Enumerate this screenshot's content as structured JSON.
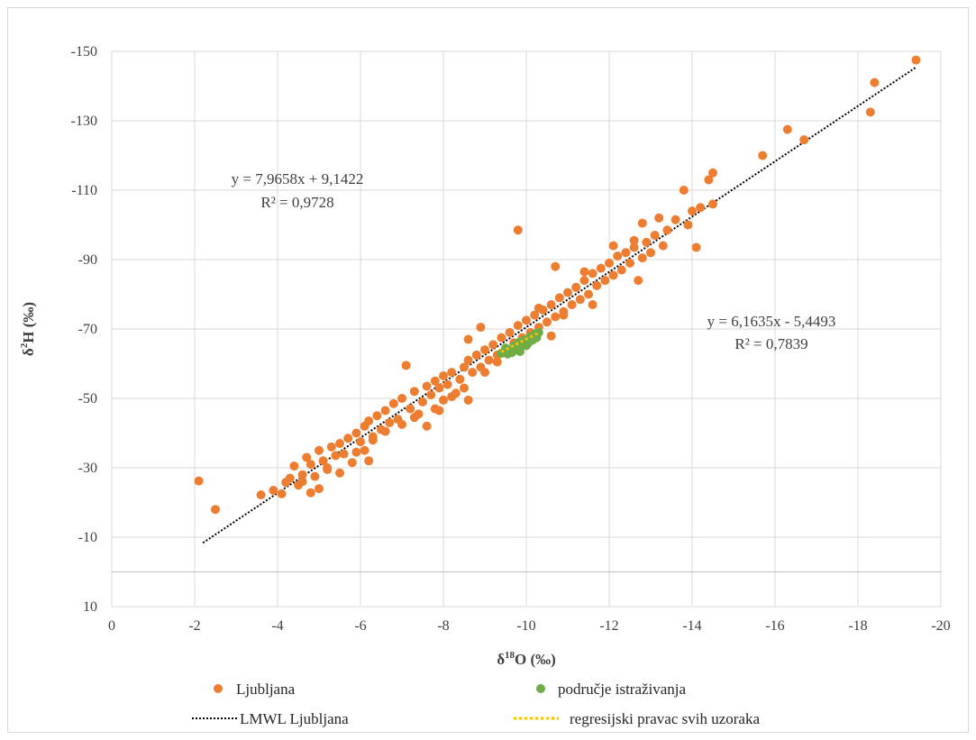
{
  "chart_data": {
    "type": "scatter",
    "xlabel_main": "δ",
    "xlabel_sup": "18",
    "xlabel_rest": "O (‰)",
    "ylabel_main": "δ",
    "ylabel_sup": "2",
    "ylabel_rest": "H (‰)",
    "x_ticks": [
      "0",
      "-2",
      "-4",
      "-6",
      "-8",
      "-10",
      "-12",
      "-14",
      "-16",
      "-18",
      "-20"
    ],
    "y_ticks": [
      "-150",
      "-130",
      "-110",
      "-90",
      "-70",
      "-50",
      "-30",
      "-10",
      "10"
    ],
    "xlim": [
      0,
      -20
    ],
    "ylim": [
      10,
      -150
    ],
    "reversed_axes": true,
    "grid": true,
    "legend_position": "bottom",
    "series": [
      {
        "name": "Ljubljana",
        "marker": "circle",
        "color": "#ed7d31",
        "points": [
          [
            -2.1,
            -26.2
          ],
          [
            -2.5,
            -18
          ],
          [
            -3.6,
            -22.2
          ],
          [
            -3.9,
            -23.5
          ],
          [
            -4.1,
            -22.5
          ],
          [
            -4.2,
            -25.8
          ],
          [
            -4.3,
            -27
          ],
          [
            -4.4,
            -30.5
          ],
          [
            -4.5,
            -25
          ],
          [
            -4.6,
            -28
          ],
          [
            -4.7,
            -33
          ],
          [
            -4.8,
            -31
          ],
          [
            -4.8,
            -22.8
          ],
          [
            -4.9,
            -27.5
          ],
          [
            -5.0,
            -35
          ],
          [
            -5.0,
            -24
          ],
          [
            -5.1,
            -32
          ],
          [
            -5.2,
            -30
          ],
          [
            -5.3,
            -36
          ],
          [
            -5.4,
            -33.5
          ],
          [
            -5.5,
            -37
          ],
          [
            -5.5,
            -28.5
          ],
          [
            -5.6,
            -34
          ],
          [
            -5.7,
            -38.5
          ],
          [
            -5.8,
            -31.5
          ],
          [
            -5.9,
            -40
          ],
          [
            -6.0,
            -37.5
          ],
          [
            -6.1,
            -42
          ],
          [
            -6.1,
            -35
          ],
          [
            -6.2,
            -43.5
          ],
          [
            -6.2,
            -32
          ],
          [
            -6.3,
            -39
          ],
          [
            -6.4,
            -45
          ],
          [
            -6.5,
            -41
          ],
          [
            -6.6,
            -46.5
          ],
          [
            -6.7,
            -43
          ],
          [
            -6.8,
            -48.5
          ],
          [
            -6.9,
            -44
          ],
          [
            -7.0,
            -50
          ],
          [
            -7.0,
            -42.5
          ],
          [
            -7.1,
            -59.5
          ],
          [
            -7.2,
            -47
          ],
          [
            -7.3,
            -52
          ],
          [
            -7.4,
            -45.5
          ],
          [
            -7.5,
            -49
          ],
          [
            -7.6,
            -53.5
          ],
          [
            -7.6,
            -42
          ],
          [
            -7.7,
            -51
          ],
          [
            -7.8,
            -55
          ],
          [
            -7.8,
            -47
          ],
          [
            -7.9,
            -53
          ],
          [
            -8.0,
            -56.5
          ],
          [
            -8.0,
            -49.5
          ],
          [
            -8.1,
            -54
          ],
          [
            -8.2,
            -57.5
          ],
          [
            -8.3,
            -51.5
          ],
          [
            -8.4,
            -55.5
          ],
          [
            -8.5,
            -59
          ],
          [
            -8.5,
            -53
          ],
          [
            -8.6,
            -61
          ],
          [
            -8.6,
            -67
          ],
          [
            -8.6,
            -49.5
          ],
          [
            -8.7,
            -57.5
          ],
          [
            -8.8,
            -62.5
          ],
          [
            -8.9,
            -59
          ],
          [
            -8.9,
            -70.5
          ],
          [
            -9.0,
            -64
          ],
          [
            -9.1,
            -61
          ],
          [
            -9.2,
            -65.5
          ],
          [
            -9.3,
            -62.5
          ],
          [
            -9.4,
            -67.5
          ],
          [
            -9.5,
            -64
          ],
          [
            -9.6,
            -69
          ],
          [
            -9.7,
            -66
          ],
          [
            -9.8,
            -98.5
          ],
          [
            -9.8,
            -71
          ],
          [
            -9.9,
            -67.5
          ],
          [
            -10.0,
            -72.5
          ],
          [
            -10.1,
            -69
          ],
          [
            -10.2,
            -74
          ],
          [
            -10.3,
            -70.5
          ],
          [
            -10.4,
            -75.5
          ],
          [
            -10.5,
            -72
          ],
          [
            -10.6,
            -77
          ],
          [
            -10.6,
            -68
          ],
          [
            -10.7,
            -88
          ],
          [
            -10.7,
            -73.5
          ],
          [
            -10.8,
            -79
          ],
          [
            -10.9,
            -75
          ],
          [
            -11.0,
            -80.5
          ],
          [
            -11.1,
            -77
          ],
          [
            -11.2,
            -82
          ],
          [
            -11.3,
            -78.5
          ],
          [
            -11.4,
            -84
          ],
          [
            -11.5,
            -80
          ],
          [
            -11.6,
            -86
          ],
          [
            -11.6,
            -77
          ],
          [
            -11.7,
            -82.5
          ],
          [
            -11.8,
            -87.5
          ],
          [
            -11.9,
            -84
          ],
          [
            -12.0,
            -89
          ],
          [
            -12.1,
            -85.5
          ],
          [
            -12.1,
            -94
          ],
          [
            -12.2,
            -91
          ],
          [
            -12.3,
            -87
          ],
          [
            -12.4,
            -92
          ],
          [
            -12.5,
            -89
          ],
          [
            -12.6,
            -93.5
          ],
          [
            -12.7,
            -84
          ],
          [
            -12.8,
            -90.5
          ],
          [
            -12.8,
            -100.5
          ],
          [
            -12.9,
            -95
          ],
          [
            -13.0,
            -92
          ],
          [
            -13.1,
            -97
          ],
          [
            -13.2,
            -102
          ],
          [
            -13.3,
            -94
          ],
          [
            -13.4,
            -98.5
          ],
          [
            -13.6,
            -101.5
          ],
          [
            -13.8,
            -110
          ],
          [
            -13.9,
            -100
          ],
          [
            -14.0,
            -104
          ],
          [
            -14.1,
            -93.5
          ],
          [
            -14.2,
            -105
          ],
          [
            -14.4,
            -113
          ],
          [
            -14.5,
            -115
          ],
          [
            -14.5,
            -106
          ],
          [
            -15.7,
            -120
          ],
          [
            -16.3,
            -127.5
          ],
          [
            -16.7,
            -124.5
          ],
          [
            -18.3,
            -132.5
          ],
          [
            -18.4,
            -141
          ],
          [
            -19.4,
            -147.5
          ],
          [
            -8.2,
            -50.5
          ],
          [
            -7.3,
            -44.5
          ],
          [
            -6.6,
            -40.5
          ],
          [
            -5.9,
            -34.5
          ],
          [
            -9.3,
            -60.5
          ],
          [
            -10.3,
            -76
          ],
          [
            -11.4,
            -86.5
          ],
          [
            -12.6,
            -95.5
          ],
          [
            -9.0,
            -57.5
          ],
          [
            -10.9,
            -74
          ],
          [
            -7.9,
            -46.5
          ],
          [
            -6.3,
            -38
          ],
          [
            -5.2,
            -29.5
          ],
          [
            -4.6,
            -26
          ]
        ]
      },
      {
        "name": "područje istraživanja",
        "marker": "circle",
        "color": "#70ad47",
        "points": [
          [
            -9.4,
            -63
          ],
          [
            -9.5,
            -64.5
          ],
          [
            -9.6,
            -63.5
          ],
          [
            -9.7,
            -65
          ],
          [
            -9.75,
            -64
          ],
          [
            -9.8,
            -66
          ],
          [
            -9.85,
            -64.8
          ],
          [
            -9.9,
            -66.5
          ],
          [
            -9.95,
            -65.5
          ],
          [
            -10.0,
            -67
          ],
          [
            -10.05,
            -66
          ],
          [
            -10.1,
            -67.8
          ],
          [
            -10.15,
            -66.8
          ],
          [
            -10.2,
            -68.5
          ],
          [
            -10.25,
            -67.5
          ],
          [
            -10.3,
            -69
          ],
          [
            -9.55,
            -62.8
          ],
          [
            -9.65,
            -63.2
          ],
          [
            -9.85,
            -63.5
          ],
          [
            -10.0,
            -65.2
          ]
        ]
      }
    ],
    "trendlines": [
      {
        "name": "LMWL Ljubljana",
        "style": "dotted",
        "color": "#000000",
        "slope": 7.9658,
        "intercept": 9.1422,
        "x_range": [
          -2.2,
          -19.4
        ],
        "equation": "y = 7,9658x  + 9,1422",
        "r2": "R² = 0,9728"
      },
      {
        "name": "regresijski pravac svih uzoraka",
        "style": "dotted",
        "color": "#ffc000",
        "slope": 6.1635,
        "intercept": -5.4493,
        "x_range": [
          -9.4,
          -10.3
        ],
        "equation": "y = 6,1635x  - 5,4493",
        "r2": "R² = 0,7839"
      }
    ]
  }
}
